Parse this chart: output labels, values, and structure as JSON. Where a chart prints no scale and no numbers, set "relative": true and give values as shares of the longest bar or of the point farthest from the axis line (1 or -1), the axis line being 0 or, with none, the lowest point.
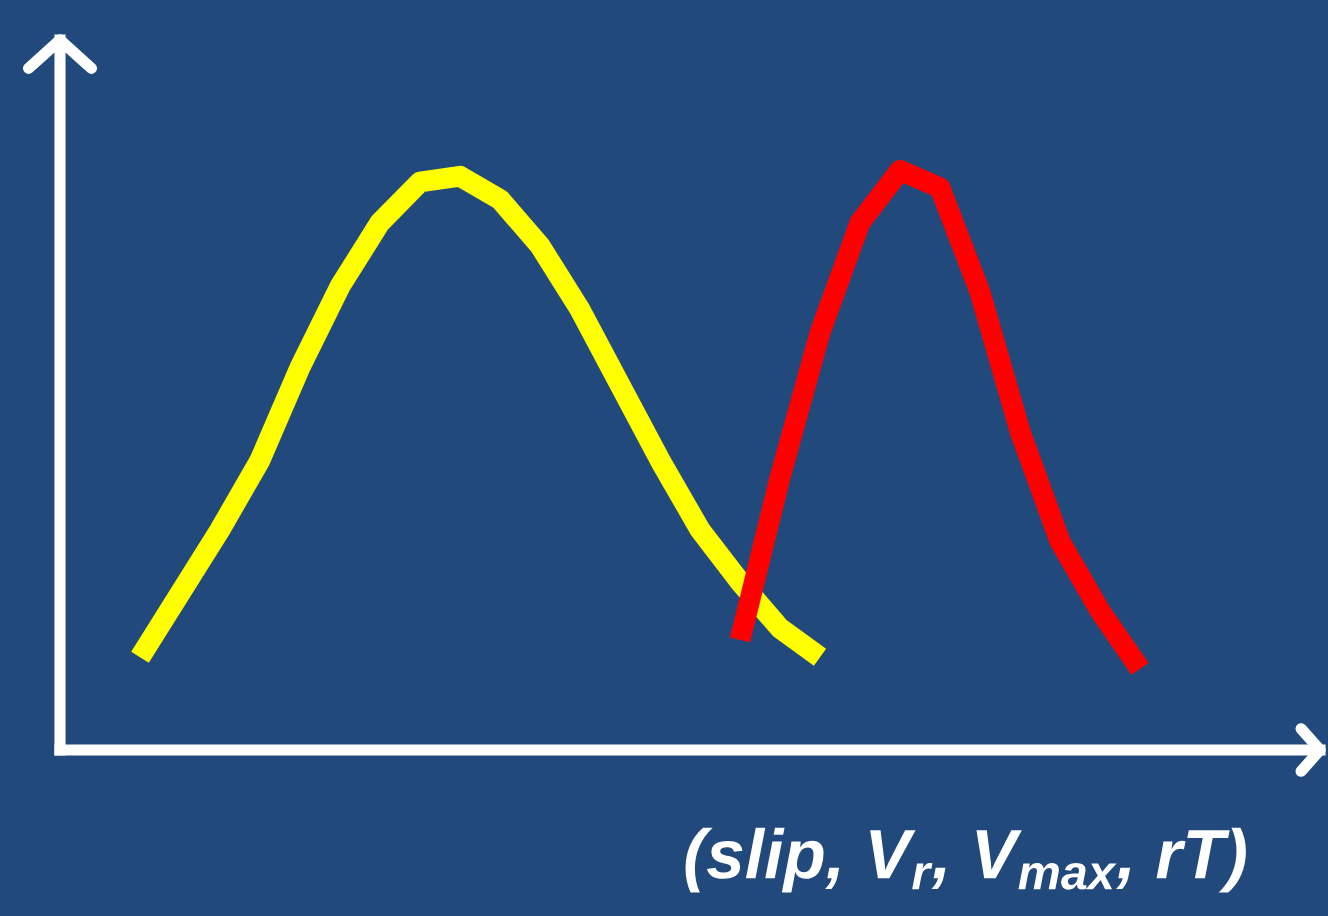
{
  "chart_data": {
    "type": "line",
    "relative": true,
    "xlabel": "(slip, V$_{r}$, V$_{max}$, rT)",
    "categories": [
      null,
      null,
      null,
      null,
      null,
      null,
      null,
      null,
      null,
      null,
      null,
      null,
      null,
      null,
      null,
      null,
      null,
      null,
      null,
      null,
      null,
      null,
      null,
      null,
      null,
      null,
      null,
      null,
      null,
      null,
      null,
      null
    ],
    "series": [
      {
        "color": "#ffff00",
        "values": [
          null,
          null,
          0.16,
          0.27,
          0.38,
          0.5,
          0.66,
          0.8,
          0.91,
          0.98,
          0.99,
          0.95,
          0.87,
          0.76,
          0.63,
          0.5,
          0.38,
          0.29,
          0.21,
          0.16,
          null,
          null,
          null,
          null,
          null,
          null,
          null,
          null,
          null,
          null,
          null,
          null
        ]
      },
      {
        "color": "#ff0000",
        "values": [
          null,
          null,
          null,
          null,
          null,
          null,
          null,
          null,
          null,
          null,
          null,
          null,
          null,
          null,
          null,
          null,
          null,
          0.19,
          0.47,
          0.72,
          0.91,
          1,
          0.97,
          0.79,
          0.55,
          0.36,
          0.24,
          0.14,
          null,
          null,
          null,
          null
        ]
      }
    ]
  }
}
